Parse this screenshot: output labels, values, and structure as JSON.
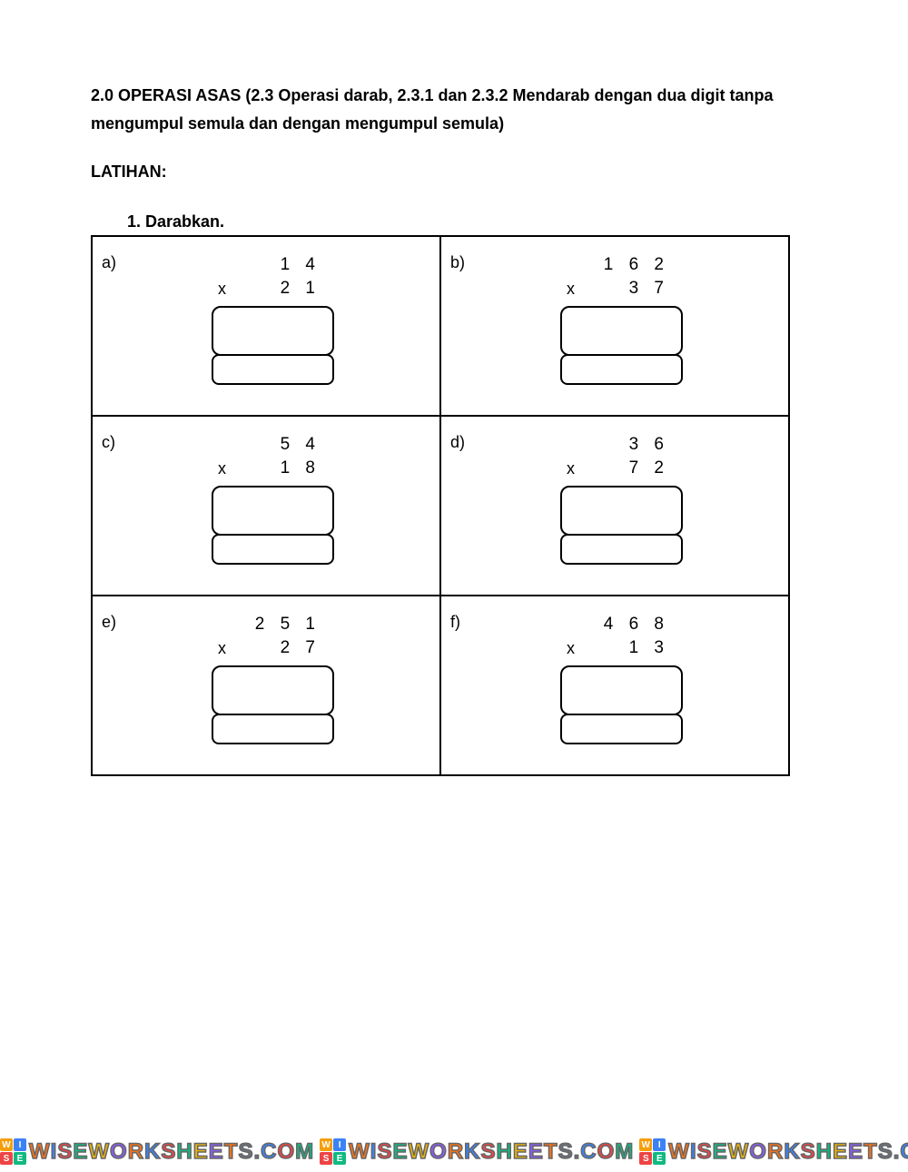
{
  "title": "2.0 OPERASI ASAS (2.3 Operasi darab, 2.3.1 dan 2.3.2 Mendarab dengan dua digit tanpa mengumpul semula dan dengan mengumpul semula)",
  "section_label": "LATIHAN:",
  "instruction": "1.  Darabkan.",
  "mult_sign": "x",
  "problems": [
    {
      "label": "a)",
      "top": "1 4",
      "bottom": "2 1"
    },
    {
      "label": "b)",
      "top": "1 6 2",
      "bottom": "3 7"
    },
    {
      "label": "c)",
      "top": "5 4",
      "bottom": "1 8"
    },
    {
      "label": "d)",
      "top": "3 6",
      "bottom": "7 2"
    },
    {
      "label": "e)",
      "top": "2 5 1",
      "bottom": "2 7"
    },
    {
      "label": "f)",
      "top": "4 6 8",
      "bottom": "1 3"
    }
  ],
  "watermark": {
    "text": "WISEWORKSHEETS.COM",
    "logo_letters": [
      "W",
      "I",
      "S",
      "E"
    ],
    "logo_colors": [
      "#f59e0b",
      "#3b82f6",
      "#ef4444",
      "#10b981"
    ],
    "letter_colors": [
      "#f97316",
      "#3b82f6",
      "#ef4444",
      "#10b981",
      "#eab308",
      "#8b5cf6",
      "#f97316",
      "#3b82f6",
      "#ef4444",
      "#10b981",
      "#eab308",
      "#8b5cf6",
      "#f97316",
      "#6b7280",
      "#3b82f6",
      "#ef4444",
      "#10b981"
    ]
  }
}
